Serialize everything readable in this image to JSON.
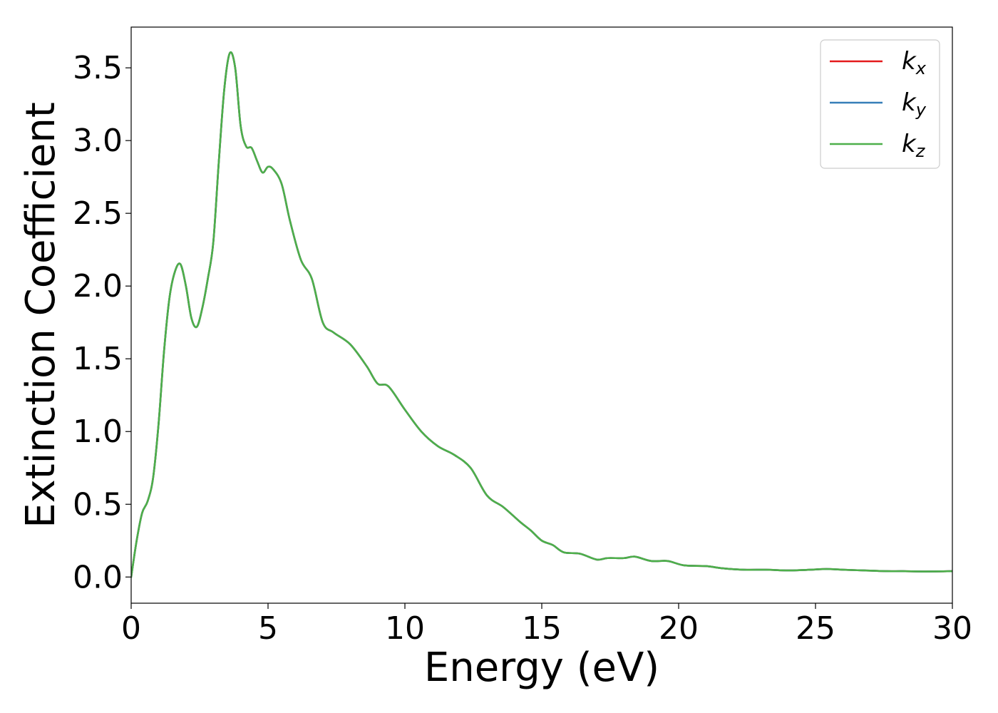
{
  "chart_data": {
    "type": "line",
    "title": "",
    "xlabel": "Energy (eV)",
    "ylabel": "Extinction Coefficient",
    "xlim": [
      0,
      30
    ],
    "ylim": [
      -0.18,
      3.78
    ],
    "xticks": [
      0,
      5,
      10,
      15,
      20,
      25,
      30
    ],
    "xtick_labels": [
      "0",
      "5",
      "10",
      "15",
      "20",
      "25",
      "30"
    ],
    "yticks": [
      0.0,
      0.5,
      1.0,
      1.5,
      2.0,
      2.5,
      3.0,
      3.5
    ],
    "ytick_labels": [
      "0.0",
      "0.5",
      "1.0",
      "1.5",
      "2.0",
      "2.5",
      "3.0",
      "3.5"
    ],
    "grid": false,
    "legend_position": "top-right",
    "x": [
      0,
      0.2,
      0.4,
      0.6,
      0.8,
      1.0,
      1.2,
      1.4,
      1.6,
      1.8,
      2.0,
      2.2,
      2.4,
      2.6,
      2.8,
      3.0,
      3.2,
      3.4,
      3.6,
      3.8,
      4.0,
      4.2,
      4.4,
      4.6,
      4.8,
      5.0,
      5.2,
      5.5,
      5.8,
      6.2,
      6.6,
      7.0,
      7.4,
      8.0,
      8.6,
      9.0,
      9.4,
      10.0,
      10.6,
      11.2,
      11.8,
      12.4,
      13.0,
      13.6,
      14.2,
      14.6,
      15.0,
      15.4,
      15.8,
      16.4,
      17.0,
      17.4,
      18.0,
      18.4,
      19.0,
      19.6,
      20.2,
      21.0,
      21.6,
      22.4,
      23.2,
      24.0,
      24.8,
      25.4,
      26.0,
      26.8,
      27.6,
      28.2,
      29.0,
      30.0
    ],
    "series": [
      {
        "name": "k_x",
        "label_main": "k",
        "label_sub": "x",
        "color": "#e41a1c",
        "values": [
          0.0,
          0.25,
          0.44,
          0.52,
          0.68,
          1.05,
          1.55,
          1.92,
          2.1,
          2.15,
          2.0,
          1.78,
          1.72,
          1.85,
          2.05,
          2.3,
          2.85,
          3.35,
          3.6,
          3.5,
          3.1,
          2.96,
          2.95,
          2.86,
          2.78,
          2.82,
          2.8,
          2.7,
          2.45,
          2.18,
          2.05,
          1.75,
          1.68,
          1.6,
          1.45,
          1.33,
          1.31,
          1.15,
          1.0,
          0.9,
          0.84,
          0.75,
          0.56,
          0.48,
          0.38,
          0.32,
          0.25,
          0.22,
          0.17,
          0.16,
          0.12,
          0.13,
          0.13,
          0.14,
          0.11,
          0.11,
          0.08,
          0.075,
          0.06,
          0.05,
          0.05,
          0.045,
          0.05,
          0.055,
          0.05,
          0.045,
          0.04,
          0.04,
          0.038,
          0.04
        ]
      },
      {
        "name": "k_y",
        "label_main": "k",
        "label_sub": "y",
        "color": "#377eb8",
        "values": [
          0.0,
          0.25,
          0.44,
          0.52,
          0.68,
          1.05,
          1.55,
          1.92,
          2.1,
          2.15,
          2.0,
          1.78,
          1.72,
          1.85,
          2.05,
          2.3,
          2.85,
          3.35,
          3.6,
          3.5,
          3.1,
          2.96,
          2.95,
          2.86,
          2.78,
          2.82,
          2.8,
          2.7,
          2.45,
          2.18,
          2.05,
          1.75,
          1.68,
          1.6,
          1.45,
          1.33,
          1.31,
          1.15,
          1.0,
          0.9,
          0.84,
          0.75,
          0.56,
          0.48,
          0.38,
          0.32,
          0.25,
          0.22,
          0.17,
          0.16,
          0.12,
          0.13,
          0.13,
          0.14,
          0.11,
          0.11,
          0.08,
          0.075,
          0.06,
          0.05,
          0.05,
          0.045,
          0.05,
          0.055,
          0.05,
          0.045,
          0.04,
          0.04,
          0.038,
          0.04
        ]
      },
      {
        "name": "k_z",
        "label_main": "k",
        "label_sub": "z",
        "color": "#4daf4a",
        "values": [
          0.0,
          0.25,
          0.44,
          0.52,
          0.68,
          1.05,
          1.55,
          1.92,
          2.1,
          2.15,
          2.0,
          1.78,
          1.72,
          1.85,
          2.05,
          2.3,
          2.85,
          3.35,
          3.6,
          3.5,
          3.1,
          2.96,
          2.95,
          2.86,
          2.78,
          2.82,
          2.8,
          2.7,
          2.45,
          2.18,
          2.05,
          1.75,
          1.68,
          1.6,
          1.45,
          1.33,
          1.31,
          1.15,
          1.0,
          0.9,
          0.84,
          0.75,
          0.56,
          0.48,
          0.38,
          0.32,
          0.25,
          0.22,
          0.17,
          0.16,
          0.12,
          0.13,
          0.13,
          0.14,
          0.11,
          0.11,
          0.08,
          0.075,
          0.06,
          0.05,
          0.05,
          0.045,
          0.05,
          0.055,
          0.05,
          0.045,
          0.04,
          0.04,
          0.038,
          0.04
        ]
      }
    ]
  }
}
